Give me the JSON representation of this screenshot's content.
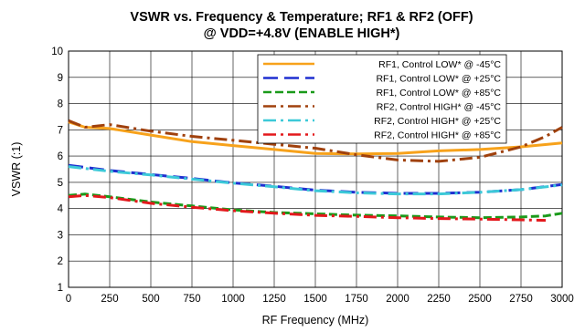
{
  "chart_data": {
    "type": "line",
    "title": "VSWR vs. Frequency & Temperature; RF1 & RF2 (OFF)",
    "subtitle": "@ VDD=+4.8V (ENABLE HIGH*)",
    "xlabel": "RF Frequency (MHz)",
    "ylabel": "VSWR (:1)",
    "xlim": [
      0,
      3000
    ],
    "ylim": [
      1,
      10
    ],
    "xticks": [
      0,
      250,
      500,
      750,
      1000,
      1250,
      1500,
      1750,
      2000,
      2250,
      2500,
      2750,
      3000
    ],
    "yticks": [
      1,
      2,
      3,
      4,
      5,
      6,
      7,
      8,
      9,
      10
    ],
    "grid": true,
    "legend_position": "top-right",
    "series": [
      {
        "name": "RF1, Control LOW* @ -45°C",
        "color": "#f7a21b",
        "dash": "solid",
        "x": [
          0,
          100,
          250,
          500,
          750,
          1000,
          1250,
          1500,
          1750,
          2000,
          2250,
          2500,
          2750,
          3000
        ],
        "y": [
          7.3,
          7.1,
          7.05,
          6.8,
          6.55,
          6.4,
          6.25,
          6.1,
          6.08,
          6.1,
          6.2,
          6.25,
          6.35,
          6.5
        ]
      },
      {
        "name": "RF1, Control LOW* @ +25°C",
        "color": "#1f2fd0",
        "dash": "long-dash",
        "x": [
          0,
          250,
          500,
          750,
          1000,
          1250,
          1500,
          1750,
          2000,
          2250,
          2500,
          2750,
          3000
        ],
        "y": [
          5.65,
          5.45,
          5.3,
          5.15,
          4.98,
          4.85,
          4.7,
          4.62,
          4.58,
          4.58,
          4.62,
          4.72,
          4.92
        ]
      },
      {
        "name": "RF1, Control LOW* @ +85°C",
        "color": "#1a9a1a",
        "dash": "dash",
        "x": [
          0,
          100,
          250,
          500,
          750,
          1000,
          1250,
          1500,
          1750,
          2000,
          2250,
          2500,
          2750,
          2900,
          3000
        ],
        "y": [
          4.5,
          4.55,
          4.45,
          4.25,
          4.1,
          3.95,
          3.85,
          3.8,
          3.75,
          3.72,
          3.68,
          3.65,
          3.68,
          3.72,
          3.82
        ]
      },
      {
        "name": "RF2, Control HIGH* @ -45°C",
        "color": "#a0410d",
        "dash": "dash-dot",
        "x": [
          0,
          100,
          250,
          500,
          750,
          1000,
          1250,
          1500,
          1750,
          2000,
          2250,
          2500,
          2750,
          2900,
          3000
        ],
        "y": [
          7.35,
          7.1,
          7.2,
          6.95,
          6.75,
          6.6,
          6.45,
          6.3,
          6.05,
          5.85,
          5.8,
          5.95,
          6.35,
          6.75,
          7.1
        ]
      },
      {
        "name": "RF2, Control HIGH* @ +25°C",
        "color": "#3cc9d8",
        "dash": "dash-dot",
        "x": [
          0,
          250,
          500,
          750,
          1000,
          1250,
          1500,
          1750,
          2000,
          2250,
          2500,
          2750,
          3000
        ],
        "y": [
          5.6,
          5.42,
          5.28,
          5.12,
          4.97,
          4.83,
          4.68,
          4.6,
          4.56,
          4.56,
          4.62,
          4.72,
          4.9
        ]
      },
      {
        "name": "RF2, Control HIGH* @ +85°C",
        "color": "#e3181c",
        "dash": "dash-dot",
        "x": [
          0,
          100,
          250,
          500,
          750,
          1000,
          1250,
          1500,
          1750,
          2000,
          2250,
          2500,
          2750,
          2900
        ],
        "y": [
          4.45,
          4.5,
          4.42,
          4.2,
          4.05,
          3.92,
          3.82,
          3.74,
          3.7,
          3.65,
          3.62,
          3.6,
          3.57,
          3.55
        ]
      }
    ]
  }
}
